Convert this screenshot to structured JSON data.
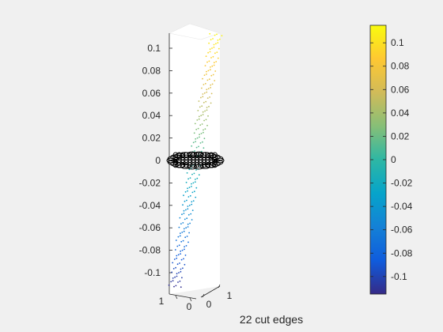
{
  "chart_data": {
    "type": "scatter",
    "title": "",
    "xlabel": "22 cut edges",
    "ylabel": "",
    "zlabel": "",
    "zlim": [
      -0.115,
      0.115
    ],
    "ticks": {
      "z": [
        0.1,
        0.08,
        0.06,
        0.04,
        0.02,
        0,
        -0.02,
        -0.04,
        -0.06,
        -0.08,
        -0.1
      ],
      "z_labels": [
        "0.1",
        "0.08",
        "0.06",
        "0.04",
        "0.02",
        "0",
        "-0.02",
        "-0.04",
        "-0.06",
        "-0.08",
        "-0.1"
      ],
      "x_labels": [
        "1",
        "0"
      ],
      "y_labels": [
        "0",
        "1"
      ]
    },
    "colorbar": {
      "colormap": "parula",
      "range": [
        -0.115,
        0.115
      ],
      "ticks": [
        0.1,
        0.08,
        0.06,
        0.04,
        0.02,
        0,
        -0.02,
        -0.04,
        -0.06,
        -0.08,
        -0.1
      ],
      "tick_labels": [
        "0.1",
        "0.08",
        "0.06",
        "0.04",
        "0.02",
        "0",
        "-0.02",
        "-0.04",
        "-0.06",
        "-0.08",
        "-0.1"
      ],
      "colors": [
        "#352a87",
        "#0f5cdd",
        "#1481d6",
        "#06a4ca",
        "#2eb7a4",
        "#87bf77",
        "#d1bb59",
        "#fec832",
        "#f9fb0e"
      ]
    },
    "series": [
      {
        "marker": "point",
        "color_by": "z",
        "z_values": [
          -0.112,
          -0.108,
          -0.104,
          -0.1,
          -0.096,
          -0.092,
          -0.088,
          -0.084,
          -0.08,
          -0.076,
          -0.072,
          -0.068,
          -0.064,
          -0.06,
          -0.056,
          -0.052,
          -0.048,
          -0.044,
          -0.04,
          -0.036,
          -0.032,
          -0.028,
          -0.024,
          -0.02,
          -0.016,
          -0.012,
          -0.008,
          -0.004,
          0.004,
          0.008,
          0.012,
          0.016,
          0.02,
          0.024,
          0.028,
          0.032,
          0.036,
          0.04,
          0.044,
          0.048,
          0.052,
          0.056,
          0.06,
          0.064,
          0.068,
          0.072,
          0.076,
          0.08,
          0.084,
          0.088,
          0.092,
          0.096,
          0.1,
          0.104,
          0.108,
          0.112
        ]
      },
      {
        "marker": "circle",
        "color": "#000000",
        "z_values": [
          0,
          0,
          0,
          0,
          0,
          0,
          0,
          0,
          0,
          0,
          0,
          0,
          0,
          0,
          0,
          0,
          0,
          0,
          0,
          0,
          0,
          0
        ]
      }
    ],
    "grid": false,
    "legend": "none"
  }
}
